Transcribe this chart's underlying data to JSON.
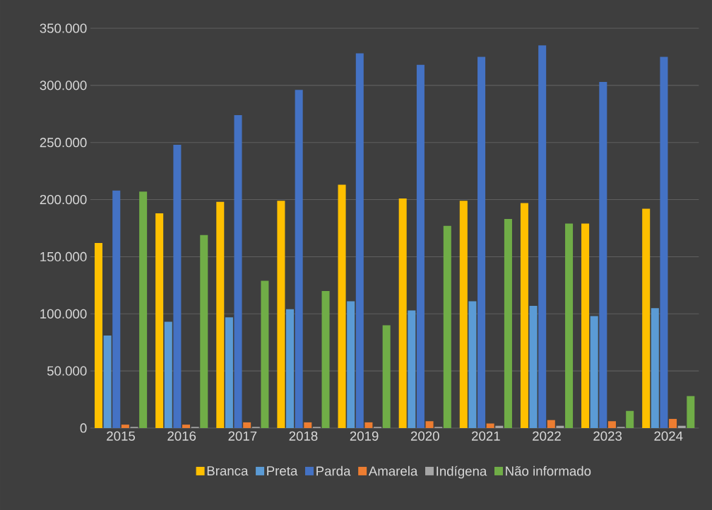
{
  "chart_data": {
    "type": "bar",
    "categories": [
      "2015",
      "2016",
      "2017",
      "2018",
      "2019",
      "2020",
      "2021",
      "2022",
      "2023",
      "2024"
    ],
    "series": [
      {
        "name": "Branca",
        "color": "#ffc000",
        "values": [
          162000,
          188000,
          198000,
          199000,
          213000,
          201000,
          199000,
          197000,
          179000,
          192000
        ]
      },
      {
        "name": "Preta",
        "color": "#5b9bd5",
        "values": [
          81000,
          93000,
          97000,
          104000,
          111000,
          103000,
          111000,
          107000,
          98000,
          105000
        ]
      },
      {
        "name": "Parda",
        "color": "#4472c4",
        "values": [
          208000,
          248000,
          274000,
          296000,
          328000,
          318000,
          325000,
          335000,
          303000,
          325000
        ]
      },
      {
        "name": "Amarela",
        "color": "#ed7d31",
        "values": [
          3000,
          3000,
          5000,
          5000,
          5000,
          6000,
          4000,
          7000,
          6000,
          8000
        ]
      },
      {
        "name": "Indígena",
        "color": "#a5a5a5",
        "values": [
          1000,
          1000,
          1000,
          1000,
          1000,
          1000,
          2000,
          2000,
          1000,
          2000
        ]
      },
      {
        "name": "Não informado",
        "color": "#70ad47",
        "values": [
          207000,
          169000,
          129000,
          120000,
          90000,
          177000,
          183000,
          179000,
          15000,
          28000
        ]
      }
    ],
    "ylim": [
      0,
      350000
    ],
    "yticks": [
      0,
      {
        "value": 50000,
        "label": "50.000"
      },
      {
        "value": 100000,
        "label": "100.000"
      },
      {
        "value": 150000,
        "label": "150.000"
      },
      {
        "value": 200000,
        "label": "200.000"
      },
      {
        "value": 250000,
        "label": "250.000"
      },
      {
        "value": 300000,
        "label": "300.000"
      },
      {
        "value": 350000,
        "label": "350.000"
      }
    ],
    "grid": "y",
    "legend": "bottom"
  }
}
